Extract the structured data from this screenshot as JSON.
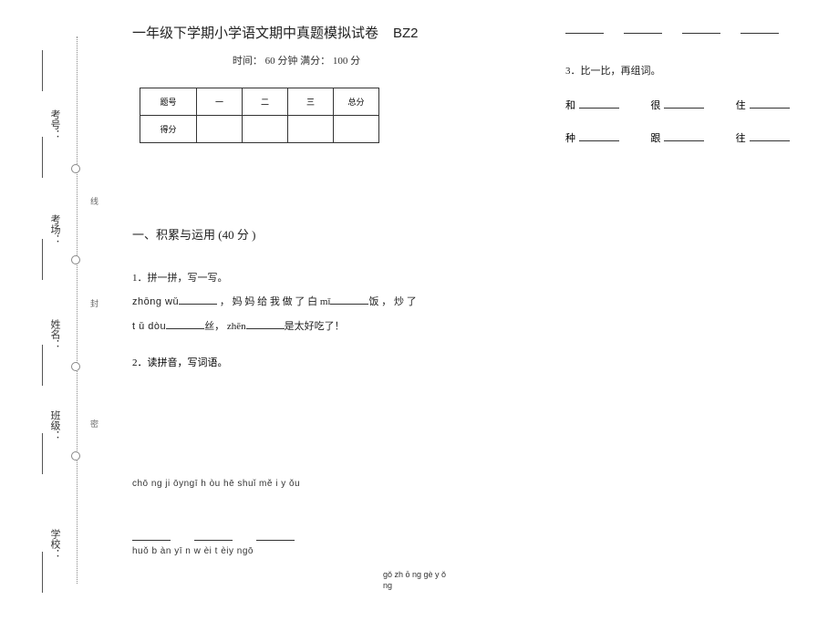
{
  "side": {
    "labels": [
      "考号：",
      "考场：",
      "姓名：",
      "班级：",
      "学校："
    ],
    "marks": [
      "线",
      "封",
      "密"
    ]
  },
  "header": {
    "title_cn": "一年级下学期小学语文期中真题模拟试卷",
    "title_code": "BZ2",
    "subtitle": "时间： 60 分钟   满分： 100 分"
  },
  "scoretable": {
    "headers": [
      "题号",
      "一",
      "二",
      "三",
      "总分"
    ],
    "row2": "得分"
  },
  "section1": "一、积累与运用  (40 分 )",
  "q1": {
    "label": "1．拼一拼，写一写。",
    "line1_a": "zhōng   wǔ",
    "line1_b": " ，  妈  妈  给  我  做  了  白  mǐ",
    "line1_c": "饭  ，  炒  了",
    "line2_a": "t ǔ    dòu",
    "line2_b": "丝， zhēn",
    "line2_c": "是太好吃了！"
  },
  "q2": {
    "label": "2．读拼音，写词语。"
  },
  "pinyin_r1": "chō ng ji   ōyngī h òu   hē shuǐ  mě i y ǒu",
  "pinyin_r2": "huǒ b àn  yī n w èi t èiy ngō",
  "pinyin_right": "gǒ zh ō ng gè y ǒ\nng",
  "q3": {
    "label": "3．比一比，再组词。"
  },
  "wordgrid": {
    "row1": [
      "和",
      "很",
      "住"
    ],
    "row2": [
      "种",
      "跟",
      "往"
    ]
  }
}
